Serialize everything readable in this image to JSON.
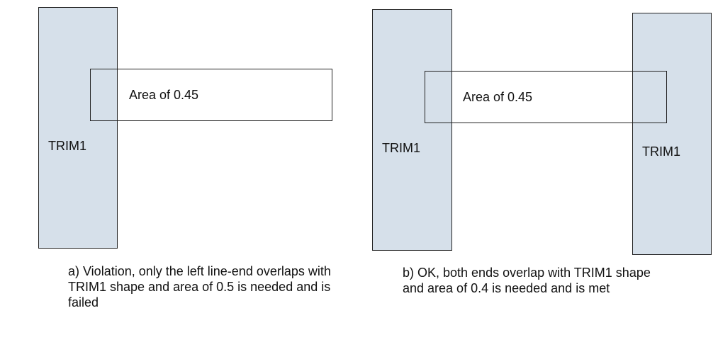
{
  "diagram_a": {
    "trim_label": "TRIM1",
    "area_label": "Area of 0.45",
    "caption": "a) Violation, only the left line-end overlaps with TRIM1 shape and area of 0.5 is needed and is failed"
  },
  "diagram_b": {
    "trim_left_label": "TRIM1",
    "trim_right_label": "TRIM1",
    "area_label": "Area of 0.45",
    "caption": "b) OK, both ends overlap with TRIM1 shape and area of 0.4 is needed and is met"
  },
  "colors": {
    "trim_fill": "#d6e0ea",
    "outline": "#222222"
  }
}
